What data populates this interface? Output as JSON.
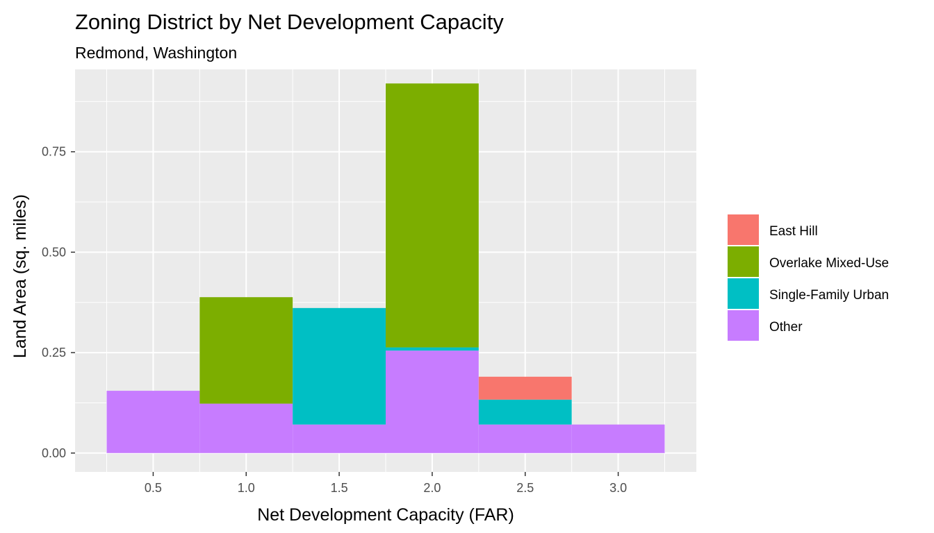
{
  "chart_data": {
    "type": "bar",
    "stacked": true,
    "title": "Zoning District by Net Development Capacity",
    "subtitle": "Redmond, Washington",
    "xlabel": "Net Development Capacity (FAR)",
    "ylabel": "Land Area (sq. miles)",
    "x_ticks": [
      "0.5",
      "1.0",
      "1.5",
      "2.0",
      "2.5",
      "3.0"
    ],
    "y_ticks": [
      "0.00",
      "0.25",
      "0.50",
      "0.75"
    ],
    "xlim": [
      0.08,
      3.42
    ],
    "ylim": [
      -0.047,
      0.955
    ],
    "bin_width": 0.5,
    "x": [
      0.5,
      1.0,
      1.5,
      2.0,
      2.5,
      3.0
    ],
    "series": [
      {
        "name": "Other",
        "color": "#C77CFF",
        "values": [
          0.155,
          0.123,
          0.071,
          0.255,
          0.071,
          0.071
        ]
      },
      {
        "name": "Single-Family Urban",
        "color": "#00BFC4",
        "values": [
          0.0,
          0.0,
          0.29,
          0.008,
          0.062,
          0.0
        ]
      },
      {
        "name": "Overlake Mixed-Use",
        "color": "#7CAE00",
        "values": [
          0.0,
          0.265,
          0.0,
          0.657,
          0.0,
          0.0
        ]
      },
      {
        "name": "East Hill",
        "color": "#F8766D",
        "values": [
          0.0,
          0.0,
          0.0,
          0.0,
          0.057,
          0.0
        ]
      }
    ],
    "legend": {
      "position": "right",
      "entries": [
        "East Hill",
        "Overlake Mixed-Use",
        "Single-Family Urban",
        "Other"
      ]
    },
    "grid": true,
    "panel_background": "#EBEBEB"
  }
}
